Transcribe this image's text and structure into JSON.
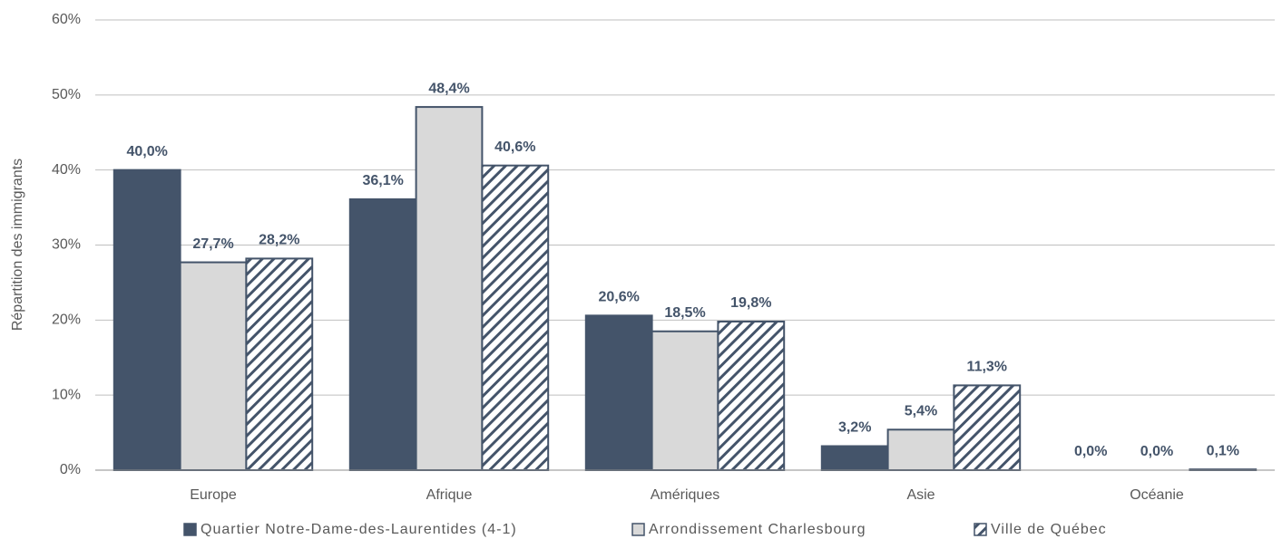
{
  "chart_data": {
    "type": "bar",
    "y_label": "Répartition des immigrants",
    "categories": [
      "Europe",
      "Afrique",
      "Amériques",
      "Asie",
      "Océanie"
    ],
    "series": [
      {
        "name": "Quartier Notre-Dame-des-Laurentides (4-1)",
        "color": "#44546a",
        "values": [
          40.0,
          36.1,
          20.6,
          3.2,
          0.0
        ],
        "value_labels": [
          "40,0%",
          "36,1%",
          "20,6%",
          "3,2%",
          "0,0%"
        ]
      },
      {
        "name": "Arrondissement Charlesbourg",
        "color": "#d9d9d9",
        "values": [
          27.7,
          48.4,
          18.5,
          5.4,
          0.0
        ],
        "value_labels": [
          "27,7%",
          "48,4%",
          "18,5%",
          "5,4%",
          "0,0%"
        ]
      },
      {
        "name": "Ville de Québec",
        "color": "#44546a",
        "pattern": "diagonal-hatch",
        "values": [
          28.2,
          40.6,
          19.8,
          11.3,
          0.1
        ],
        "value_labels": [
          "28,2%",
          "40,6%",
          "19,8%",
          "11,3%",
          "0,1%"
        ]
      }
    ],
    "ylim": [
      0,
      60
    ],
    "yticks": [
      {
        "value": 0,
        "label": "0%"
      },
      {
        "value": 10,
        "label": "10%"
      },
      {
        "value": 20,
        "label": "20%"
      },
      {
        "value": 30,
        "label": "30%"
      },
      {
        "value": 40,
        "label": "40%"
      },
      {
        "value": 50,
        "label": "50%"
      },
      {
        "value": 60,
        "label": "60%"
      }
    ],
    "grid": true,
    "legend": "bottom"
  }
}
